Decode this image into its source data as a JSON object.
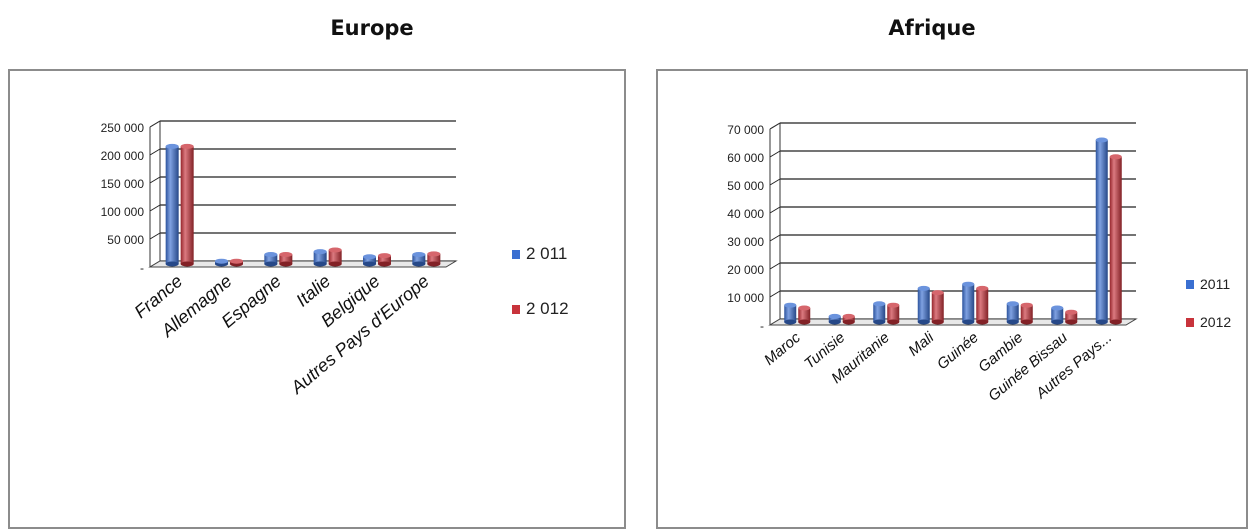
{
  "chart_data": [
    {
      "type": "bar",
      "title": "Europe",
      "categories": [
        "France",
        "Allemagne",
        "Espagne",
        "Italie",
        "Belgique",
        "Autres Pays d'Europe"
      ],
      "series": [
        {
          "name": "2 011",
          "color": "#3a6fd1",
          "values": [
            210000,
            5000,
            17000,
            22000,
            13000,
            17000
          ]
        },
        {
          "name": "2 012",
          "color": "#c8333b",
          "values": [
            210000,
            5000,
            17000,
            25000,
            15000,
            18000
          ]
        }
      ],
      "yticks": [
        0,
        50000,
        100000,
        150000,
        200000,
        250000
      ],
      "ytick_labels": [
        "-",
        "50 000",
        "100 000",
        "150 000",
        "200 000",
        "250 000"
      ],
      "ylim": [
        0,
        250000
      ],
      "legend_position": "right",
      "style": "3d-cylinder"
    },
    {
      "type": "bar",
      "title": "Afrique",
      "categories": [
        "Maroc",
        "Tunisie",
        "Mauritanie",
        "Mali",
        "Guinée",
        "Gambie",
        "Guinée Bissau",
        "Autres Pays..."
      ],
      "series": [
        {
          "name": "2011",
          "color": "#3a6fd1",
          "values": [
            6000,
            2000,
            6500,
            12000,
            13500,
            6500,
            5000,
            65000
          ]
        },
        {
          "name": "2012",
          "color": "#c8333b",
          "values": [
            5000,
            2000,
            6000,
            10500,
            12000,
            6000,
            3500,
            59000
          ]
        }
      ],
      "yticks": [
        0,
        10000,
        20000,
        30000,
        40000,
        50000,
        60000,
        70000
      ],
      "ytick_labels": [
        "-",
        "10 000",
        "20 000",
        "30 000",
        "40 000",
        "50 000",
        "60 000",
        "70 000"
      ],
      "ylim": [
        0,
        70000
      ],
      "legend_position": "right",
      "style": "3d-cylinder"
    }
  ]
}
